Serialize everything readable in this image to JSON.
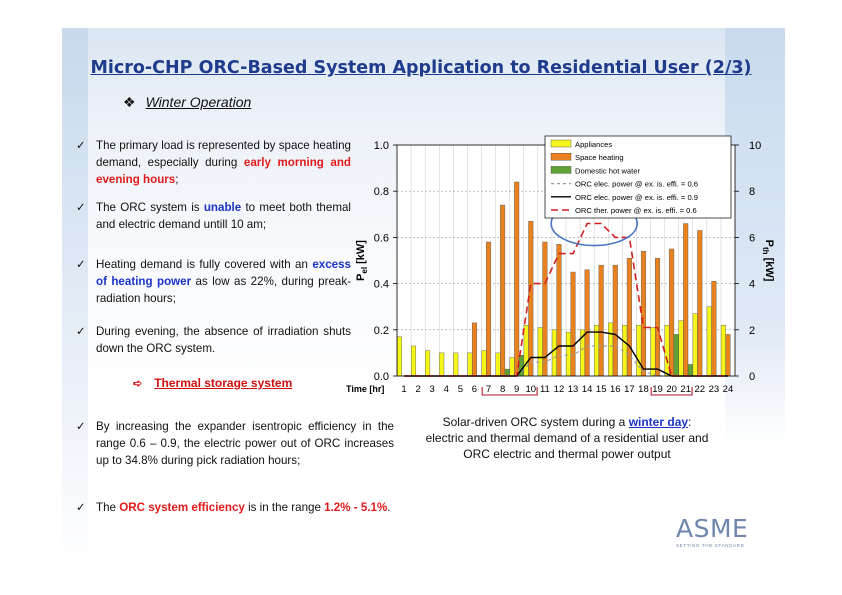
{
  "title": "Micro-CHP ORC-Based System Application to Residential User (2/3)",
  "subheading": {
    "bullet": "❖",
    "text": "Winter Operation"
  },
  "bullets": {
    "b1": {
      "a": "The primary load is represented by space heating demand, especially during ",
      "hl": "early morning and evening hours",
      "c": ";"
    },
    "b2": {
      "a": "The ORC system is ",
      "hl": "unable",
      "c": " to meet both themal and electric demand untill 10 am;"
    },
    "b3": {
      "a": "Heating demand is fully covered with an ",
      "hl": "excess of heating power",
      "c": " as low as 22%, during preak-radiation hours;"
    },
    "b4": {
      "a": "During evening, the absence of irradiation shuts down the ORC system."
    },
    "b5": {
      "a": "By increasing the expander isentropic efficiency in the range 0.6 – 0.9, the electric power out of ORC increases up to 34.8% during pick radiation hours;"
    },
    "b6": {
      "a": "The ",
      "hl": "ORC system efficiency",
      "b": " is in the range ",
      "hl2": "1.2% - 5.1%",
      "c": "."
    }
  },
  "check_mark": "✓",
  "arrow_item": {
    "arrow": "➪",
    "label": "Thermal storage system"
  },
  "caption": {
    "l1a": "Solar-driven ORC system during a ",
    "l1b": "winter day",
    "l1c": ":",
    "l2": "electric and thermal demand of a residential user and",
    "l3": "ORC electric and thermal power output"
  },
  "logo": {
    "name": "ASME",
    "tagline": "SETTING THE STANDARD"
  },
  "colors": {
    "title": "#1f3b8c",
    "highlight_red": "#e11b1b",
    "highlight_blue": "#1a33c8",
    "appliances": "#f5f519",
    "space_heating": "#e8821e",
    "dhw": "#5ea334",
    "orc_thermal": "#d42020",
    "ellipse": "#4a74c4",
    "bracket": "#c04050"
  },
  "chart_data": {
    "type": "bar",
    "x": [
      1,
      2,
      3,
      4,
      5,
      6,
      7,
      8,
      9,
      10,
      11,
      12,
      13,
      14,
      15,
      16,
      17,
      18,
      19,
      20,
      21,
      22,
      23,
      24
    ],
    "xlabel": "Time [hr]",
    "ylabel_left": "P",
    "ylabel_left_sub": "el",
    "ylabel_left_unit": " [kW]",
    "ylabel_right": "P",
    "ylabel_right_sub": "th",
    "ylabel_right_unit": " [kW]",
    "ylim_left": [
      0,
      1.0
    ],
    "ylim_right": [
      0,
      10
    ],
    "yticks_left": [
      "0.0",
      "0.2",
      "0.4",
      "0.6",
      "0.8",
      "1.0"
    ],
    "yticks_right": [
      "0",
      "2",
      "4",
      "6",
      "8",
      "10"
    ],
    "series": [
      {
        "name": "Appliances",
        "kind": "bar",
        "axis": "left",
        "values": [
          0.17,
          0.13,
          0.11,
          0.1,
          0.1,
          0.1,
          0.11,
          0.1,
          0.08,
          0.22,
          0.21,
          0.2,
          0.19,
          0.2,
          0.22,
          0.23,
          0.22,
          0.22,
          0.21,
          0.22,
          0.24,
          0.27,
          0.3,
          0.22
        ]
      },
      {
        "name": "Space heating",
        "kind": "bar",
        "axis": "right",
        "values": [
          0,
          0,
          0,
          0,
          0,
          2.3,
          5.8,
          7.4,
          8.4,
          6.7,
          5.8,
          5.7,
          4.5,
          4.6,
          4.8,
          4.8,
          5.1,
          5.4,
          5.1,
          5.5,
          6.6,
          6.3,
          4.1,
          1.8
        ]
      },
      {
        "name": "Domestic hot water",
        "kind": "bar",
        "axis": "right",
        "values": [
          0,
          0,
          0,
          0,
          0,
          0,
          0,
          0.3,
          0.9,
          0,
          0,
          0,
          0,
          0,
          0,
          0,
          0,
          0,
          0,
          1.8,
          0.5,
          0,
          0,
          0
        ]
      },
      {
        "name": "ORC elec. power @ ex. is. effi. = 0.6",
        "kind": "line",
        "style": "gray-dash",
        "axis": "left",
        "values": [
          0,
          0,
          0,
          0,
          0,
          0,
          0,
          0,
          0,
          0.06,
          0.06,
          0.09,
          0.09,
          0.13,
          0.13,
          0.13,
          0.09,
          0.02,
          0,
          0,
          0,
          0,
          0,
          0
        ]
      },
      {
        "name": "ORC elec. power @ ex. is. effi. = 0.9",
        "kind": "line",
        "style": "black-solid",
        "axis": "left",
        "values": [
          0,
          0,
          0,
          0,
          0,
          0,
          0,
          0,
          0,
          0.08,
          0.08,
          0.13,
          0.13,
          0.19,
          0.19,
          0.18,
          0.13,
          0.03,
          0.03,
          0,
          0,
          0,
          0,
          0
        ]
      },
      {
        "name": "ORC ther. power @ ex. is. effi. = 0.6",
        "kind": "line",
        "style": "red-dash",
        "axis": "right",
        "values": [
          0,
          0,
          0,
          0,
          0,
          0,
          0,
          0,
          0,
          4.0,
          4.0,
          5.3,
          5.3,
          6.6,
          6.6,
          6.0,
          6.0,
          2.1,
          2.1,
          0,
          0,
          0,
          0,
          0
        ]
      }
    ],
    "legend": "top-right"
  }
}
